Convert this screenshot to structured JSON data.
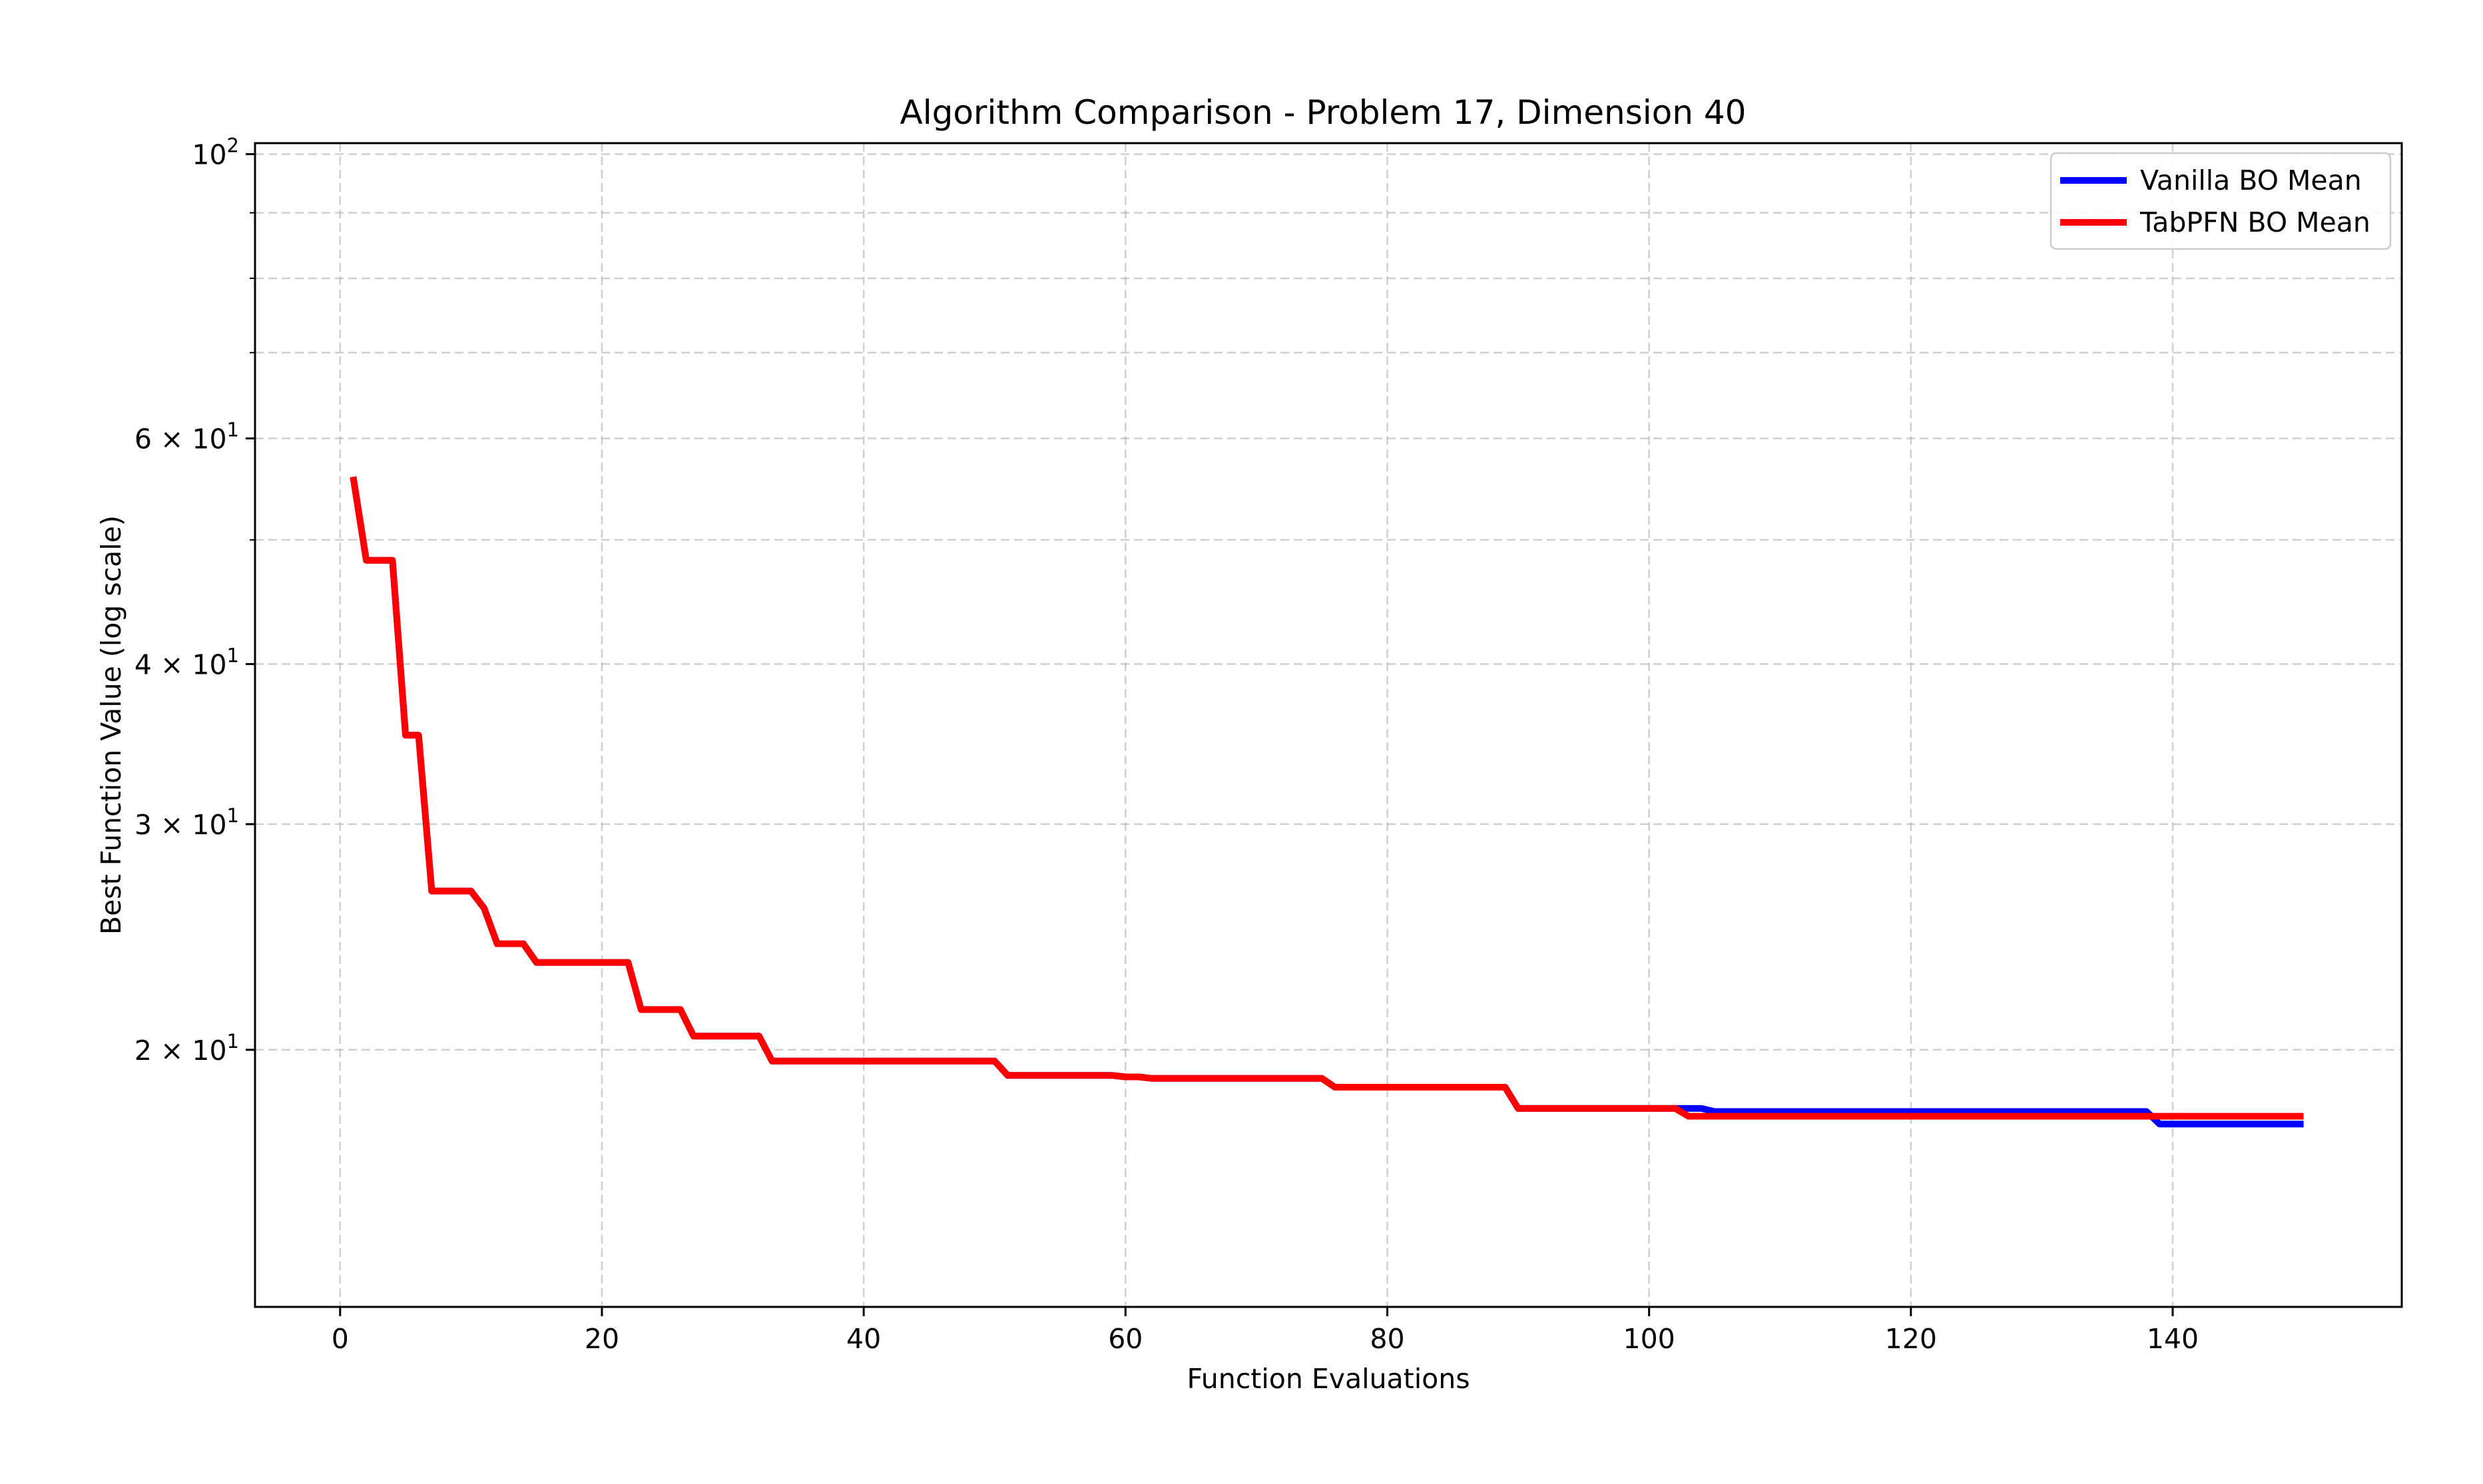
{
  "chart_data": {
    "type": "line",
    "title": "Algorithm Comparison - Problem 17, Dimension 40",
    "xlabel": "Function Evaluations",
    "ylabel": "Best Function Value (log scale)",
    "xlim": [
      -6.5,
      157.5
    ],
    "ylim": [
      12.6,
      102.0
    ],
    "yscale": "log",
    "grid": true,
    "legend_position": "top-right",
    "x_ticks": [
      {
        "value": 0,
        "label": "0"
      },
      {
        "value": 20,
        "label": "20"
      },
      {
        "value": 40,
        "label": "40"
      },
      {
        "value": 60,
        "label": "60"
      },
      {
        "value": 80,
        "label": "80"
      },
      {
        "value": 100,
        "label": "100"
      },
      {
        "value": 120,
        "label": "120"
      },
      {
        "value": 140,
        "label": "140"
      }
    ],
    "y_major_ticks": [
      {
        "value": 100,
        "mant": "10",
        "exp": "2"
      },
      {
        "value": 60,
        "mant": "6 × 10",
        "exp": "1"
      },
      {
        "value": 40,
        "mant": "4 × 10",
        "exp": "1"
      },
      {
        "value": 30,
        "mant": "3 × 10",
        "exp": "1"
      },
      {
        "value": 20,
        "mant": "2 × 10",
        "exp": "1"
      }
    ],
    "y_minor_gridlines": [
      50,
      70,
      80,
      90
    ],
    "series": [
      {
        "name": "Vanilla BO Mean",
        "color": "#0000ff",
        "points": [
          [
            1,
            56.0
          ],
          [
            2,
            48.2
          ],
          [
            4,
            48.2
          ],
          [
            5,
            35.2
          ],
          [
            6,
            35.2
          ],
          [
            7,
            26.6
          ],
          [
            10,
            26.6
          ],
          [
            11,
            25.8
          ],
          [
            12,
            24.2
          ],
          [
            14,
            24.2
          ],
          [
            15,
            23.4
          ],
          [
            22,
            23.4
          ],
          [
            23,
            21.5
          ],
          [
            26,
            21.5
          ],
          [
            27,
            20.5
          ],
          [
            32,
            20.5
          ],
          [
            33,
            19.6
          ],
          [
            50,
            19.6
          ],
          [
            51,
            19.1
          ],
          [
            59,
            19.1
          ],
          [
            60,
            19.05
          ],
          [
            61,
            19.05
          ],
          [
            62,
            19.0
          ],
          [
            75,
            19.0
          ],
          [
            76,
            18.7
          ],
          [
            89,
            18.7
          ],
          [
            90,
            18.0
          ],
          [
            104,
            18.0
          ],
          [
            105,
            17.9
          ],
          [
            138,
            17.9
          ],
          [
            139,
            17.5
          ],
          [
            150,
            17.5
          ]
        ]
      },
      {
        "name": "TabPFN BO Mean",
        "color": "#ff0000",
        "points": [
          [
            1,
            56.0
          ],
          [
            2,
            48.2
          ],
          [
            4,
            48.2
          ],
          [
            5,
            35.2
          ],
          [
            6,
            35.2
          ],
          [
            7,
            26.6
          ],
          [
            10,
            26.6
          ],
          [
            11,
            25.8
          ],
          [
            12,
            24.2
          ],
          [
            14,
            24.2
          ],
          [
            15,
            23.4
          ],
          [
            22,
            23.4
          ],
          [
            23,
            21.5
          ],
          [
            26,
            21.5
          ],
          [
            27,
            20.5
          ],
          [
            32,
            20.5
          ],
          [
            33,
            19.6
          ],
          [
            50,
            19.6
          ],
          [
            51,
            19.1
          ],
          [
            59,
            19.1
          ],
          [
            60,
            19.05
          ],
          [
            61,
            19.05
          ],
          [
            62,
            19.0
          ],
          [
            75,
            19.0
          ],
          [
            76,
            18.7
          ],
          [
            89,
            18.7
          ],
          [
            90,
            18.0
          ],
          [
            102,
            18.0
          ],
          [
            103,
            17.75
          ],
          [
            150,
            17.75
          ]
        ]
      }
    ]
  }
}
